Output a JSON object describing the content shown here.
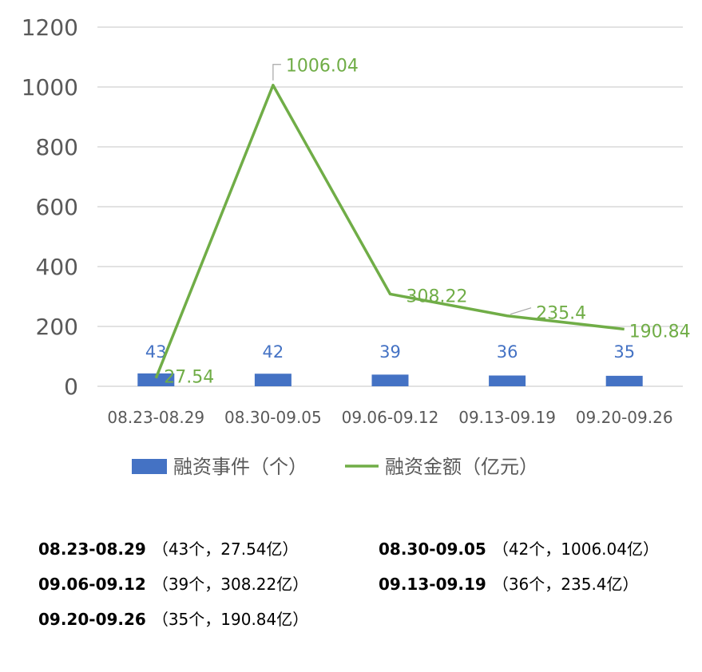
{
  "chart_data": {
    "type": "bar",
    "categories": [
      "08.23-08.29",
      "08.30-09.05",
      "09.06-09.12",
      "09.13-09.19",
      "09.20-09.26"
    ],
    "series": [
      {
        "name": "融资事件（个）",
        "type": "bar",
        "values": [
          43,
          42,
          39,
          36,
          35
        ],
        "color": "#4472c4"
      },
      {
        "name": "融资金额（亿元）",
        "type": "line",
        "values": [
          27.54,
          1006.04,
          308.22,
          235.4,
          190.84
        ],
        "color": "#70ad47"
      }
    ],
    "bar_labels": [
      "43",
      "42",
      "39",
      "36",
      "35"
    ],
    "line_labels": [
      "27.54",
      "1006.04",
      "308.22",
      "235.4",
      "190.84"
    ],
    "yticks": [
      "0",
      "200",
      "400",
      "600",
      "800",
      "1000",
      "1200"
    ],
    "ylim": [
      0,
      1200
    ],
    "grid": true,
    "legend_position": "bottom",
    "grid_color": "#d9d9d9"
  },
  "summary": [
    {
      "range": "08.23-08.29",
      "detail": "（43个，27.54亿）"
    },
    {
      "range": "08.30-09.05",
      "detail": "（42个，1006.04亿）"
    },
    {
      "range": "09.06-09.12",
      "detail": "（39个，308.22亿）"
    },
    {
      "range": "09.13-09.19",
      "detail": "（36个，235.4亿）"
    },
    {
      "range": "09.20-09.26",
      "detail": "（35个，190.84亿）"
    }
  ]
}
